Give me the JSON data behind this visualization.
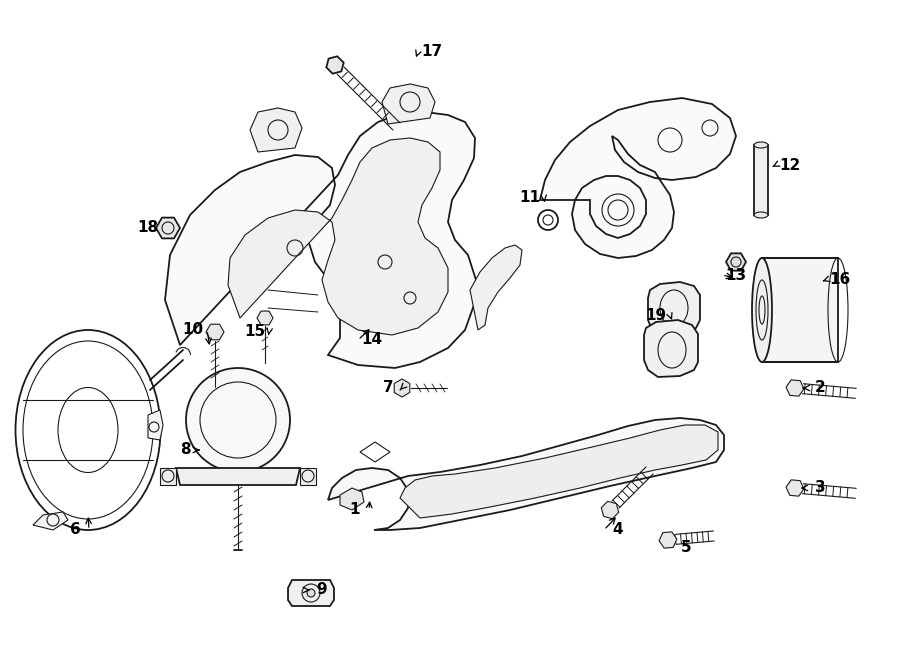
{
  "bg_color": "#ffffff",
  "line_color": "#1a1a1a",
  "figsize": [
    9.0,
    6.62
  ],
  "dpi": 100,
  "labels": {
    "1": [
      355,
      510,
      370,
      498
    ],
    "2": [
      820,
      388,
      800,
      388
    ],
    "3": [
      820,
      488,
      798,
      488
    ],
    "4": [
      618,
      530,
      618,
      515
    ],
    "5": [
      686,
      548,
      672,
      548
    ],
    "6": [
      75,
      530,
      88,
      514
    ],
    "7": [
      388,
      388,
      400,
      390
    ],
    "8": [
      185,
      450,
      200,
      450
    ],
    "9": [
      322,
      590,
      310,
      590
    ],
    "10": [
      193,
      330,
      210,
      348
    ],
    "11": [
      530,
      198,
      545,
      205
    ],
    "12": [
      790,
      165,
      770,
      168
    ],
    "13": [
      736,
      275,
      736,
      278
    ],
    "14": [
      372,
      340,
      372,
      327
    ],
    "15": [
      255,
      332,
      268,
      338
    ],
    "16": [
      840,
      280,
      820,
      282
    ],
    "17": [
      432,
      52,
      415,
      60
    ],
    "18": [
      148,
      228,
      162,
      228
    ],
    "19": [
      656,
      315,
      672,
      320
    ]
  }
}
